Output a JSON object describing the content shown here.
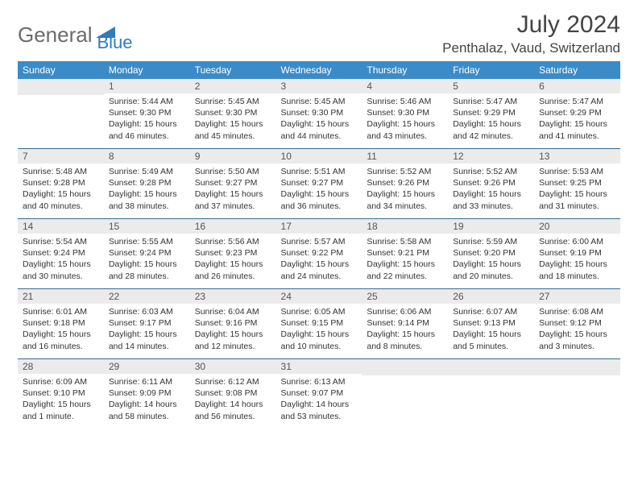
{
  "logo": {
    "word1": "General",
    "word2": "Blue"
  },
  "header": {
    "title": "July 2024",
    "location": "Penthalaz, Vaud, Switzerland"
  },
  "colors": {
    "header_bg": "#3b8bc8",
    "header_fg": "#ffffff",
    "daynum_bg": "#ebebeb",
    "rule": "#3b6a8f",
    "text": "#333333"
  },
  "columns": [
    "Sunday",
    "Monday",
    "Tuesday",
    "Wednesday",
    "Thursday",
    "Friday",
    "Saturday"
  ],
  "first_weekday_index": 1,
  "day_label_fontsize": 12,
  "info_fontsize": 10.5,
  "days": [
    {
      "n": 1,
      "sr": "5:44 AM",
      "ss": "9:30 PM",
      "dl": "15 hours and 46 minutes."
    },
    {
      "n": 2,
      "sr": "5:45 AM",
      "ss": "9:30 PM",
      "dl": "15 hours and 45 minutes."
    },
    {
      "n": 3,
      "sr": "5:45 AM",
      "ss": "9:30 PM",
      "dl": "15 hours and 44 minutes."
    },
    {
      "n": 4,
      "sr": "5:46 AM",
      "ss": "9:30 PM",
      "dl": "15 hours and 43 minutes."
    },
    {
      "n": 5,
      "sr": "5:47 AM",
      "ss": "9:29 PM",
      "dl": "15 hours and 42 minutes."
    },
    {
      "n": 6,
      "sr": "5:47 AM",
      "ss": "9:29 PM",
      "dl": "15 hours and 41 minutes."
    },
    {
      "n": 7,
      "sr": "5:48 AM",
      "ss": "9:28 PM",
      "dl": "15 hours and 40 minutes."
    },
    {
      "n": 8,
      "sr": "5:49 AM",
      "ss": "9:28 PM",
      "dl": "15 hours and 38 minutes."
    },
    {
      "n": 9,
      "sr": "5:50 AM",
      "ss": "9:27 PM",
      "dl": "15 hours and 37 minutes."
    },
    {
      "n": 10,
      "sr": "5:51 AM",
      "ss": "9:27 PM",
      "dl": "15 hours and 36 minutes."
    },
    {
      "n": 11,
      "sr": "5:52 AM",
      "ss": "9:26 PM",
      "dl": "15 hours and 34 minutes."
    },
    {
      "n": 12,
      "sr": "5:52 AM",
      "ss": "9:26 PM",
      "dl": "15 hours and 33 minutes."
    },
    {
      "n": 13,
      "sr": "5:53 AM",
      "ss": "9:25 PM",
      "dl": "15 hours and 31 minutes."
    },
    {
      "n": 14,
      "sr": "5:54 AM",
      "ss": "9:24 PM",
      "dl": "15 hours and 30 minutes."
    },
    {
      "n": 15,
      "sr": "5:55 AM",
      "ss": "9:24 PM",
      "dl": "15 hours and 28 minutes."
    },
    {
      "n": 16,
      "sr": "5:56 AM",
      "ss": "9:23 PM",
      "dl": "15 hours and 26 minutes."
    },
    {
      "n": 17,
      "sr": "5:57 AM",
      "ss": "9:22 PM",
      "dl": "15 hours and 24 minutes."
    },
    {
      "n": 18,
      "sr": "5:58 AM",
      "ss": "9:21 PM",
      "dl": "15 hours and 22 minutes."
    },
    {
      "n": 19,
      "sr": "5:59 AM",
      "ss": "9:20 PM",
      "dl": "15 hours and 20 minutes."
    },
    {
      "n": 20,
      "sr": "6:00 AM",
      "ss": "9:19 PM",
      "dl": "15 hours and 18 minutes."
    },
    {
      "n": 21,
      "sr": "6:01 AM",
      "ss": "9:18 PM",
      "dl": "15 hours and 16 minutes."
    },
    {
      "n": 22,
      "sr": "6:03 AM",
      "ss": "9:17 PM",
      "dl": "15 hours and 14 minutes."
    },
    {
      "n": 23,
      "sr": "6:04 AM",
      "ss": "9:16 PM",
      "dl": "15 hours and 12 minutes."
    },
    {
      "n": 24,
      "sr": "6:05 AM",
      "ss": "9:15 PM",
      "dl": "15 hours and 10 minutes."
    },
    {
      "n": 25,
      "sr": "6:06 AM",
      "ss": "9:14 PM",
      "dl": "15 hours and 8 minutes."
    },
    {
      "n": 26,
      "sr": "6:07 AM",
      "ss": "9:13 PM",
      "dl": "15 hours and 5 minutes."
    },
    {
      "n": 27,
      "sr": "6:08 AM",
      "ss": "9:12 PM",
      "dl": "15 hours and 3 minutes."
    },
    {
      "n": 28,
      "sr": "6:09 AM",
      "ss": "9:10 PM",
      "dl": "15 hours and 1 minute."
    },
    {
      "n": 29,
      "sr": "6:11 AM",
      "ss": "9:09 PM",
      "dl": "14 hours and 58 minutes."
    },
    {
      "n": 30,
      "sr": "6:12 AM",
      "ss": "9:08 PM",
      "dl": "14 hours and 56 minutes."
    },
    {
      "n": 31,
      "sr": "6:13 AM",
      "ss": "9:07 PM",
      "dl": "14 hours and 53 minutes."
    }
  ],
  "labels": {
    "sunrise": "Sunrise:",
    "sunset": "Sunset:",
    "daylight": "Daylight:"
  }
}
